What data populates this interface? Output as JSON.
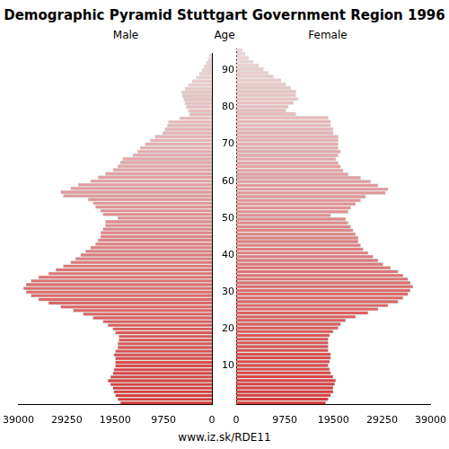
{
  "title": "Demographic Pyramid Stuttgart Government Region 1996",
  "source": "www.iz.sk/RDE11",
  "age_label": "Age",
  "chart_data": [
    {
      "type": "bar",
      "orientation": "horizontal",
      "title": "Male",
      "grid": false,
      "categories": [
        null,
        null,
        null,
        null,
        null,
        null,
        null,
        null,
        null,
        null,
        "10",
        null,
        null,
        null,
        null,
        null,
        null,
        null,
        null,
        null,
        "20",
        null,
        null,
        null,
        null,
        null,
        null,
        null,
        null,
        null,
        "30",
        null,
        null,
        null,
        null,
        null,
        null,
        null,
        null,
        null,
        "40",
        null,
        null,
        null,
        null,
        null,
        null,
        null,
        null,
        null,
        "50",
        null,
        null,
        null,
        null,
        null,
        null,
        null,
        null,
        null,
        "60",
        null,
        null,
        null,
        null,
        null,
        null,
        null,
        null,
        null,
        "70",
        null,
        null,
        null,
        null,
        null,
        null,
        null,
        null,
        null,
        "80",
        null,
        null,
        null,
        null,
        null,
        null,
        null,
        null,
        null,
        "90",
        null,
        null,
        null,
        null
      ],
      "values": [
        18500,
        19000,
        19500,
        19800,
        20000,
        20500,
        21000,
        20500,
        20000,
        19800,
        19500,
        19500,
        19500,
        19800,
        19500,
        19000,
        19000,
        18800,
        18800,
        19500,
        20000,
        21000,
        22000,
        24000,
        26000,
        28000,
        30500,
        33000,
        35000,
        36500,
        37500,
        38000,
        37500,
        36500,
        35000,
        33000,
        31500,
        30000,
        28500,
        27500,
        26500,
        25500,
        24500,
        23500,
        23000,
        22500,
        22500,
        22000,
        21500,
        21500,
        19000,
        22000,
        22500,
        23500,
        24000,
        25000,
        30000,
        30500,
        28500,
        27000,
        24500,
        23000,
        21500,
        20000,
        19000,
        18500,
        18000,
        16000,
        15000,
        14500,
        13500,
        12500,
        11500,
        10000,
        9500,
        9000,
        8800,
        6500,
        4500,
        4800,
        5200,
        5500,
        5700,
        6000,
        6200,
        5500,
        4800,
        4000,
        3200,
        2500,
        2000,
        1600,
        1200,
        800,
        500
      ],
      "xlim": [
        39000,
        0
      ],
      "xticks": [
        39000,
        29250,
        19500,
        9750,
        0
      ]
    },
    {
      "type": "bar",
      "orientation": "horizontal",
      "title": "Female",
      "grid": false,
      "tick_labels": "x",
      "categories": [
        null,
        null,
        null,
        null,
        null,
        null,
        null,
        null,
        null,
        null,
        "10",
        null,
        null,
        null,
        null,
        null,
        null,
        null,
        null,
        null,
        "20",
        null,
        null,
        null,
        null,
        null,
        null,
        null,
        null,
        null,
        "30",
        null,
        null,
        null,
        null,
        null,
        null,
        null,
        null,
        null,
        "40",
        null,
        null,
        null,
        null,
        null,
        null,
        null,
        null,
        null,
        "50",
        null,
        null,
        null,
        null,
        null,
        null,
        null,
        null,
        null,
        "60",
        null,
        null,
        null,
        null,
        null,
        null,
        null,
        null,
        null,
        "70",
        null,
        null,
        null,
        null,
        null,
        null,
        null,
        null,
        null,
        "80",
        null,
        null,
        null,
        null,
        null,
        null,
        null,
        null,
        null,
        "90",
        null,
        null,
        null,
        null
      ],
      "values": [
        18000,
        18500,
        19000,
        19500,
        19500,
        19800,
        20000,
        19500,
        19000,
        18800,
        18500,
        18800,
        19000,
        19000,
        18500,
        18500,
        18500,
        18500,
        18800,
        19500,
        20500,
        21000,
        22000,
        24000,
        26500,
        28500,
        30500,
        32500,
        33500,
        34500,
        35000,
        35500,
        35000,
        34500,
        33500,
        32500,
        31000,
        29500,
        28500,
        27500,
        26500,
        25500,
        25000,
        24500,
        24500,
        24000,
        23500,
        23000,
        22500,
        22000,
        19000,
        22500,
        23000,
        24000,
        25000,
        26000,
        30000,
        30500,
        28500,
        27000,
        25000,
        22500,
        21500,
        21000,
        20500,
        20000,
        20500,
        21000,
        20500,
        20500,
        20500,
        20500,
        19500,
        19500,
        19000,
        19000,
        18500,
        12000,
        10000,
        10500,
        11500,
        12500,
        12000,
        12000,
        11000,
        10000,
        9000,
        7500,
        6500,
        5500,
        4500,
        3500,
        2500,
        1800,
        1200
      ],
      "xlim": [
        0,
        39000
      ],
      "xticks": [
        0,
        9750,
        19500,
        29250,
        39000
      ]
    }
  ]
}
